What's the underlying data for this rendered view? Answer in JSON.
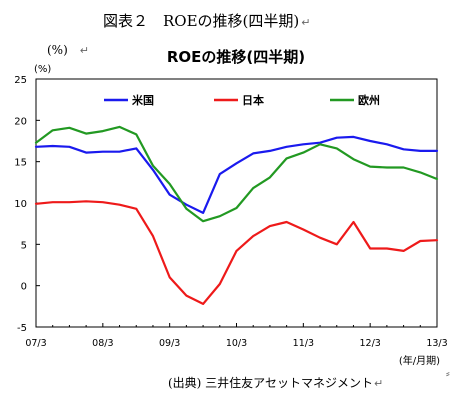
{
  "document": {
    "title": "図表２　ROEの推移(四半期)",
    "return_mark": "↵",
    "pct_label": "(%)",
    "source": "(出典) 三井住友アセットマネジメント"
  },
  "chart_data": {
    "type": "line",
    "title": "ROEの推移(四半期)",
    "ylabel": "(%)",
    "xlabel": "(年/月期)",
    "ylim": [
      -5,
      25
    ],
    "yticks": [
      25,
      20,
      15,
      10,
      5,
      0,
      -5
    ],
    "xlim": [
      0,
      24
    ],
    "xticks": [
      {
        "x": 0,
        "label": "07/3"
      },
      {
        "x": 4,
        "label": "08/3"
      },
      {
        "x": 8,
        "label": "09/3"
      },
      {
        "x": 12,
        "label": "10/3"
      },
      {
        "x": 16,
        "label": "11/3"
      },
      {
        "x": 20,
        "label": "12/3"
      },
      {
        "x": 24,
        "label": "13/3"
      }
    ],
    "grid": false,
    "legend_position": "top",
    "series": [
      {
        "name": "米国",
        "color": "#1a1aee",
        "values": [
          16.8,
          16.9,
          16.8,
          16.1,
          16.2,
          16.2,
          16.6,
          14.0,
          11.0,
          9.8,
          8.8,
          13.5,
          14.8,
          16.0,
          16.3,
          16.8,
          17.1,
          17.3,
          17.9,
          18.0,
          17.5,
          17.1,
          16.5,
          16.3,
          16.3
        ]
      },
      {
        "name": "日本",
        "color": "#ee1a1a",
        "values": [
          9.9,
          10.1,
          10.1,
          10.2,
          10.1,
          9.8,
          9.3,
          6.0,
          1.0,
          -1.2,
          -2.2,
          0.2,
          4.2,
          6.0,
          7.2,
          7.7,
          6.8,
          5.8,
          5.0,
          7.7,
          4.5,
          4.5,
          4.2,
          5.4,
          5.5
        ]
      },
      {
        "name": "欧州",
        "color": "#229922",
        "values": [
          17.3,
          18.8,
          19.1,
          18.4,
          18.7,
          19.2,
          18.3,
          14.5,
          12.3,
          9.3,
          7.8,
          8.4,
          9.4,
          11.8,
          13.1,
          15.4,
          16.1,
          17.1,
          16.6,
          15.3,
          14.4,
          14.3,
          14.3,
          13.7,
          12.9
        ]
      }
    ]
  }
}
